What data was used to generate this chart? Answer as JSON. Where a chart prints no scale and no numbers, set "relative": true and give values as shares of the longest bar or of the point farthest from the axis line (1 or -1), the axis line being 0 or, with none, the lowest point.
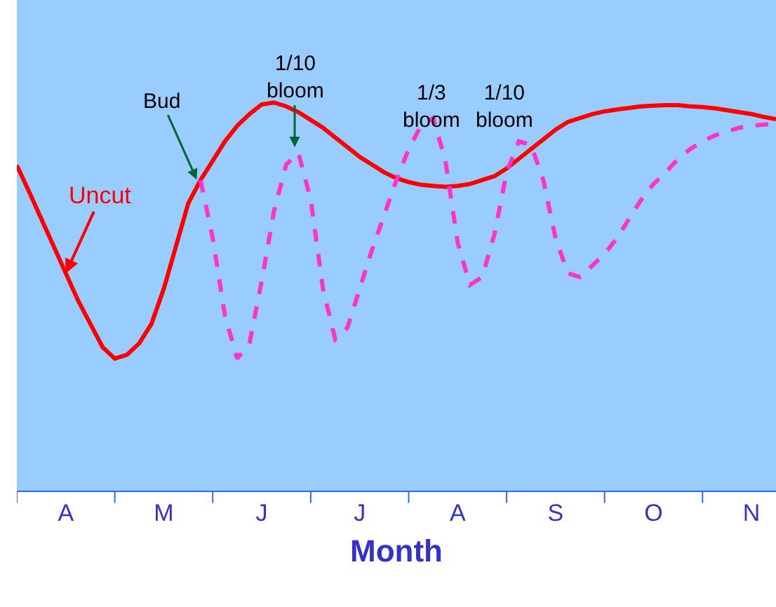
{
  "chart_data": {
    "type": "line",
    "relative": true,
    "xlabel": "Month",
    "categories": [
      null,
      null,
      null,
      null,
      "A",
      null,
      null,
      null,
      null,
      null,
      null,
      null,
      "M",
      null,
      null,
      null,
      null,
      null,
      null,
      null,
      "J",
      null,
      null,
      null,
      null,
      null,
      null,
      null,
      "J",
      null,
      null,
      null,
      null,
      null,
      null,
      null,
      "A",
      null,
      null,
      null,
      null,
      null,
      null,
      null,
      "S",
      null,
      null,
      null,
      null,
      null,
      null,
      null,
      "O",
      null,
      null,
      null,
      null,
      null,
      null,
      null,
      "N",
      null,
      null
    ],
    "grid": false,
    "legend": false,
    "marker": "none",
    "series": [
      {
        "name": "Uncut",
        "color": "#ff0000",
        "line_style": "solid",
        "values": [
          0.838,
          0.77,
          0.7,
          0.63,
          0.56,
          0.49,
          0.43,
          0.37,
          0.34,
          0.35,
          0.38,
          0.43,
          0.52,
          0.63,
          0.74,
          0.8,
          0.85,
          0.9,
          0.94,
          0.97,
          0.995,
          1.0,
          0.99,
          0.975,
          0.955,
          0.935,
          0.91,
          0.885,
          0.86,
          0.84,
          0.82,
          0.805,
          0.795,
          0.788,
          0.785,
          0.783,
          0.785,
          0.79,
          0.8,
          0.81,
          0.83,
          0.855,
          0.88,
          0.905,
          0.93,
          0.95,
          0.96,
          0.97,
          0.977,
          0.982,
          0.986,
          0.99,
          0.992,
          0.993,
          0.993,
          0.99,
          0.988,
          0.985,
          0.98,
          0.975,
          0.97,
          0.963,
          0.957
        ]
      },
      {
        "color": "#ff33cc",
        "line_style": "dashed",
        "values": [
          null,
          null,
          null,
          null,
          null,
          null,
          null,
          null,
          null,
          null,
          null,
          null,
          null,
          null,
          null,
          0.8,
          0.65,
          0.45,
          0.34,
          0.38,
          0.54,
          0.72,
          0.84,
          0.87,
          0.75,
          0.52,
          0.39,
          0.42,
          0.52,
          0.62,
          0.71,
          0.8,
          0.88,
          0.94,
          0.96,
          0.85,
          0.64,
          0.53,
          0.55,
          0.66,
          0.82,
          0.9,
          0.89,
          0.8,
          0.65,
          0.56,
          0.55,
          0.58,
          0.61,
          0.65,
          0.7,
          0.75,
          0.79,
          0.82,
          0.855,
          0.88,
          0.9,
          0.915,
          0.925,
          0.935,
          0.94,
          0.943,
          0.946
        ]
      }
    ],
    "annotations": [
      "Bud",
      "1/10 bloom",
      "1/3 bloom",
      "1/10 bloom"
    ]
  }
}
